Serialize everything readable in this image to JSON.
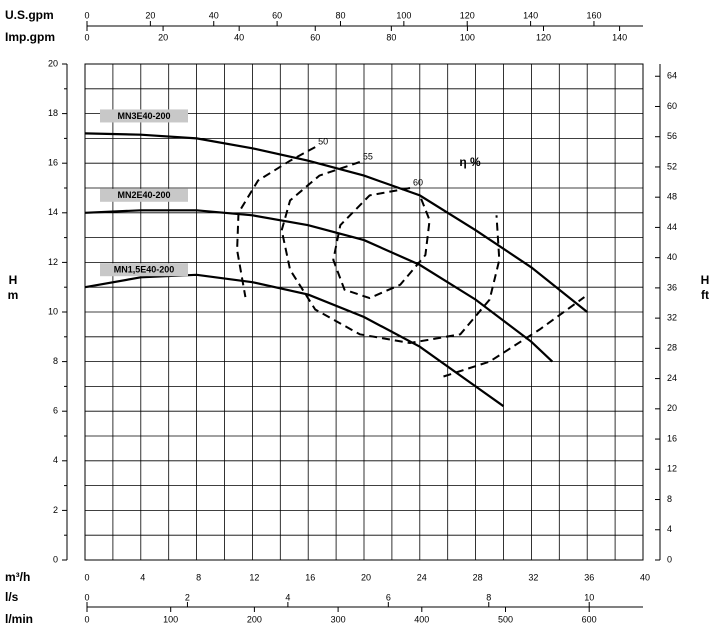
{
  "chart_data": {
    "type": "line",
    "xlabel": "m³/h",
    "ylabel": "H",
    "yunit": "m",
    "y2label": "H",
    "y2unit": "ft",
    "efficiency_label": "η %",
    "xlim": [
      0,
      40
    ],
    "xticks": [
      0,
      4,
      8,
      12,
      16,
      20,
      24,
      28,
      32,
      36,
      40
    ],
    "xminorticks": [
      2,
      6,
      10,
      14,
      18,
      22,
      26,
      30,
      34,
      38
    ],
    "ylim": [
      0,
      20
    ],
    "yticks": [
      0,
      2,
      4,
      6,
      8,
      10,
      12,
      14,
      16,
      18,
      20
    ],
    "yminorticks": [
      1,
      3,
      5,
      7,
      9,
      11,
      13,
      15,
      17,
      19
    ],
    "y2lim": [
      0,
      65.62
    ],
    "y2ticks": [
      0,
      4,
      8,
      12,
      16,
      20,
      24,
      28,
      32,
      36,
      40,
      44,
      48,
      52,
      56,
      60,
      64
    ],
    "grid": true,
    "secondary_x_axes": [
      {
        "label": "U.S.gpm",
        "lim": [
          0,
          176.11
        ],
        "ticks": [
          0,
          20,
          40,
          60,
          80,
          100,
          120,
          140,
          160
        ]
      },
      {
        "label": "Imp.gpm",
        "lim": [
          0,
          146.68
        ],
        "ticks": [
          0,
          20,
          40,
          60,
          80,
          100,
          120,
          140
        ]
      },
      {
        "label": "l/s",
        "lim": [
          0,
          11.111
        ],
        "ticks": [
          0,
          2,
          4,
          6,
          8,
          10
        ]
      },
      {
        "label": "l/min",
        "lim": [
          0,
          666.67
        ],
        "ticks": [
          0,
          100,
          200,
          300,
          400,
          500,
          600
        ]
      }
    ],
    "series": [
      {
        "name": "MN3E40-200",
        "color": "#000000",
        "x": [
          0,
          4,
          8,
          12,
          16,
          20,
          24,
          28,
          32,
          36
        ],
        "values": [
          17.2,
          17.15,
          17.0,
          16.6,
          16.1,
          15.5,
          14.7,
          13.3,
          11.8,
          10.0
        ]
      },
      {
        "name": "MN2E40-200",
        "color": "#000000",
        "x": [
          0,
          4,
          8,
          12,
          16,
          20,
          24,
          28,
          32,
          33.5
        ],
        "values": [
          14.0,
          14.1,
          14.1,
          13.9,
          13.5,
          12.9,
          11.9,
          10.5,
          8.8,
          8.0
        ]
      },
      {
        "name": "MN1,5E40-200",
        "color": "#000000",
        "x": [
          0,
          4,
          8,
          12,
          16,
          20,
          24,
          28,
          30
        ],
        "values": [
          11.0,
          11.4,
          11.5,
          11.2,
          10.7,
          9.8,
          8.6,
          7.0,
          6.2
        ]
      }
    ],
    "efficiency_contours": [
      {
        "level": 50,
        "color": "#000000",
        "x": [
          16.5,
          14.7,
          12.4,
          11.0,
          10.9,
          11.5,
          null,
          25.7,
          29.0,
          32.6,
          35.8
        ],
        "values": [
          16.65,
          16.1,
          15.3,
          14.0,
          12.5,
          10.6,
          null,
          7.4,
          8.0,
          9.3,
          10.6
        ]
      },
      {
        "level": 55,
        "color": "#000000",
        "x": [
          19.7,
          16.8,
          14.7,
          14.1,
          14.7,
          16.5,
          19.7,
          23.3,
          26.9,
          29.0,
          29.7,
          29.5
        ],
        "values": [
          16.05,
          15.5,
          14.5,
          13.3,
          11.7,
          10.1,
          9.1,
          8.75,
          9.1,
          10.5,
          12.1,
          13.9
        ]
      },
      {
        "level": 60,
        "color": "#000000",
        "x": [
          23.3,
          20.4,
          18.3,
          17.8,
          18.6,
          20.4,
          22.6,
          24.4,
          24.7,
          24.0
        ],
        "values": [
          15.0,
          14.7,
          13.5,
          12.1,
          10.9,
          10.56,
          11.1,
          12.3,
          13.7,
          14.7
        ]
      }
    ]
  }
}
